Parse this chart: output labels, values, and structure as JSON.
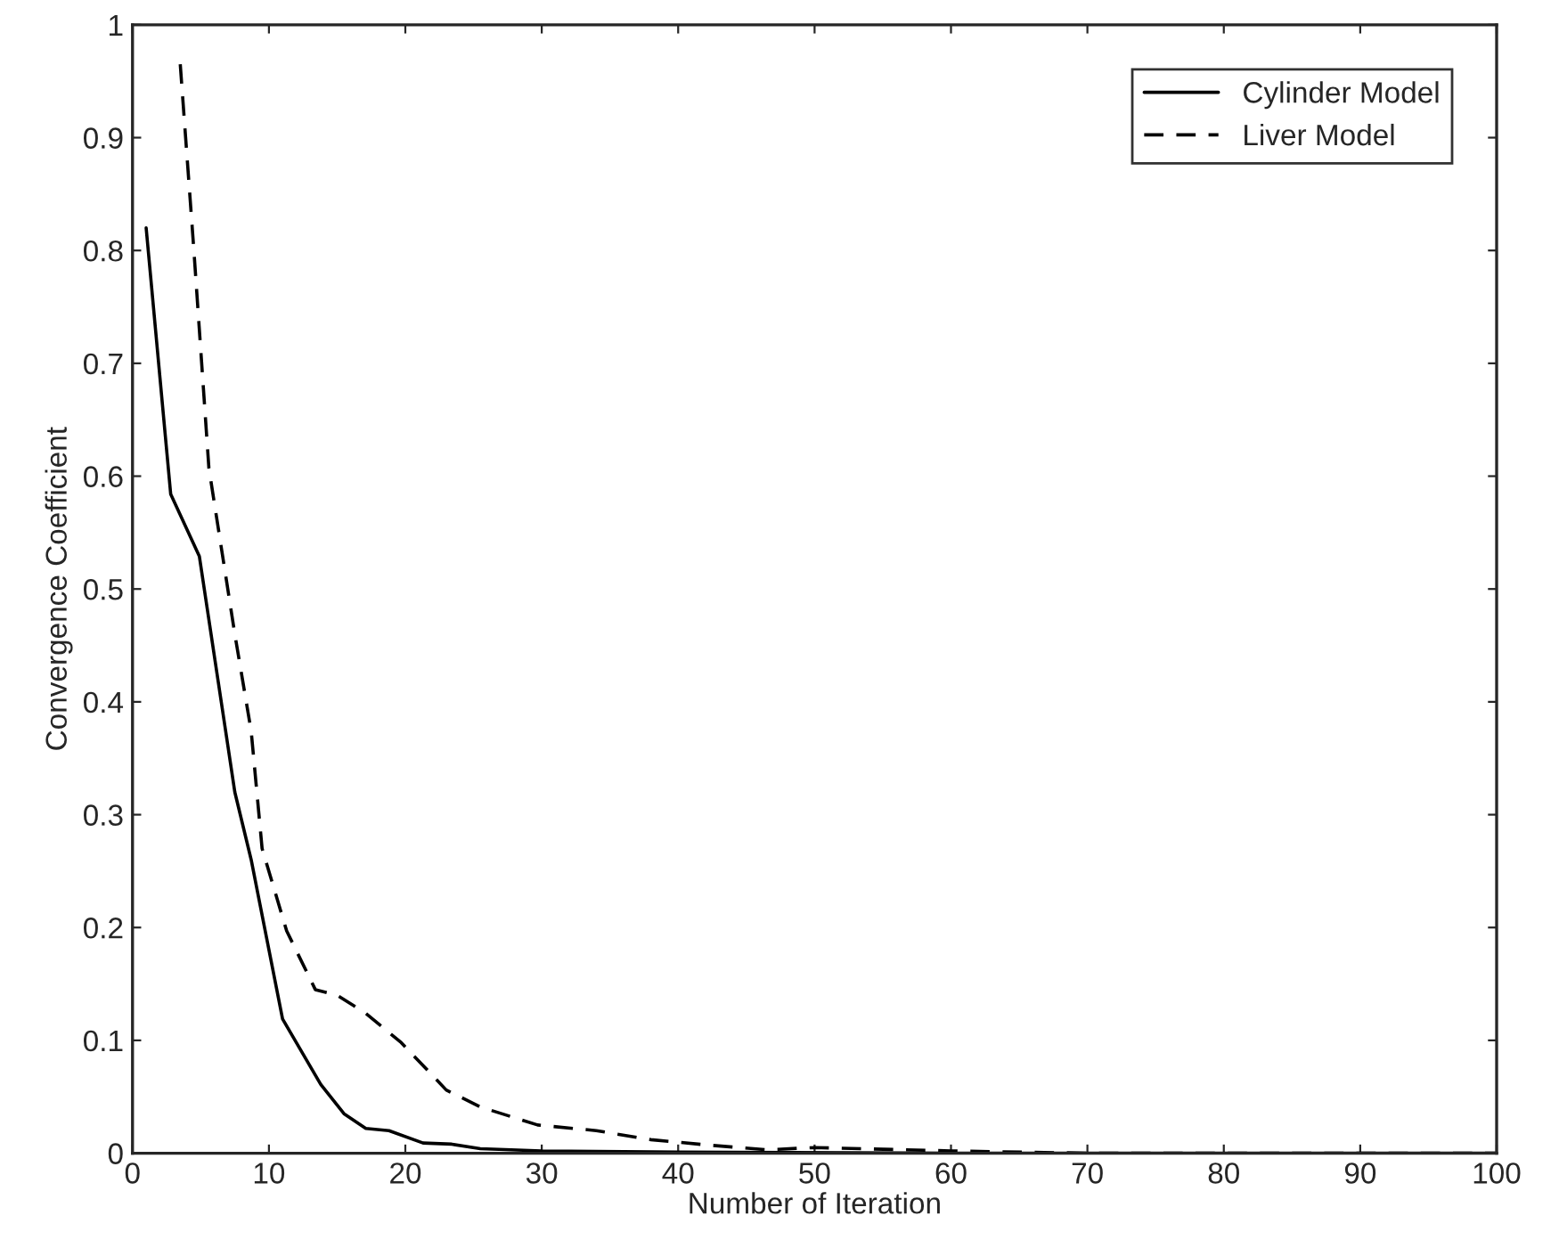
{
  "chart_data": {
    "type": "line",
    "xlabel": "Number of Iteration",
    "ylabel": "Convergence Coefficient",
    "xlim": [
      0,
      100
    ],
    "xticks": [
      0,
      10,
      20,
      30,
      40,
      50,
      60,
      70,
      80,
      90,
      100
    ],
    "ylim": [
      0,
      1
    ],
    "yticks": [
      0,
      0.1,
      0.2,
      0.3,
      0.4,
      0.5,
      0.6,
      0.7,
      0.8,
      0.9,
      1
    ],
    "grid": false,
    "legend": "top right",
    "marker": "none",
    "series": [
      {
        "name": "Cylinder Model",
        "color": "#000000",
        "line_style": "solid",
        "x": [
          1,
          2.8,
          4.9,
          7.5,
          8.7,
          11,
          13.8,
          15.5,
          17.1,
          18.8,
          21.3,
          23.4,
          25.5,
          30,
          40,
          60,
          100
        ],
        "values": [
          0.82,
          0.584,
          0.529,
          0.32,
          0.26,
          0.119,
          0.061,
          0.035,
          0.022,
          0.02,
          0.009,
          0.008,
          0.004,
          0.002,
          0.001,
          0,
          0
        ]
      },
      {
        "name": "Liver Model",
        "color": "#000000",
        "line_style": "dashed",
        "x": [
          3.5,
          4.5,
          5.6,
          7.5,
          8.7,
          9.5,
          11.3,
          13.4,
          15,
          17.1,
          19.7,
          23,
          25.5,
          29.7,
          34,
          38,
          42.4,
          46.5,
          50,
          60,
          70,
          100
        ],
        "values": [
          0.965,
          0.8,
          0.607,
          0.46,
          0.374,
          0.27,
          0.197,
          0.145,
          0.14,
          0.124,
          0.098,
          0.056,
          0.041,
          0.025,
          0.02,
          0.012,
          0.007,
          0.003,
          0.005,
          0.002,
          0,
          0
        ]
      }
    ]
  }
}
